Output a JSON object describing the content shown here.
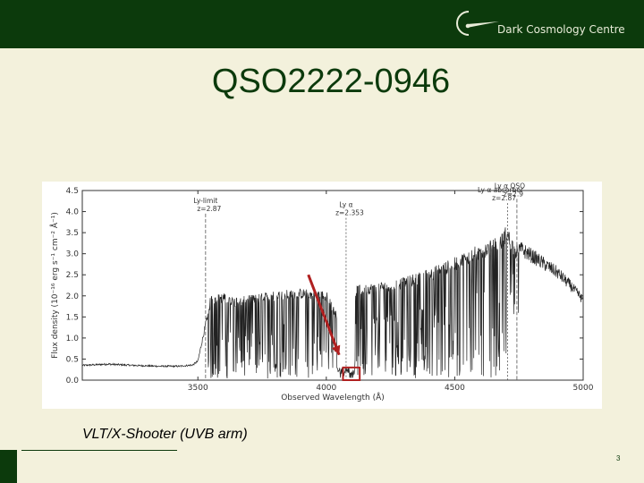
{
  "header": {
    "logo_text": "Dark Cosmology Centre",
    "colors": {
      "bar": "#0c3a0c",
      "background": "#f3f1dc",
      "title": "#0c3a0c"
    }
  },
  "slide": {
    "title": "QSO2222-0946",
    "caption": "VLT/X-Shooter (UVB arm)",
    "page_number": "3"
  },
  "chart_data": {
    "type": "line",
    "title": "",
    "xlabel": "Observed Wavelength (Å)",
    "ylabel": "Flux density (10⁻¹⁶ erg s⁻¹ cm⁻² Å⁻¹)",
    "xlim": [
      3050,
      5000
    ],
    "ylim": [
      0.0,
      4.5
    ],
    "xticks": [
      3500,
      4000,
      4500,
      5000
    ],
    "yticks": [
      0.0,
      0.5,
      1.0,
      1.5,
      2.0,
      2.5,
      3.0,
      3.5,
      4.0,
      4.5
    ],
    "grid": false,
    "series_color": "#222222",
    "continuum": {
      "x": [
        3050,
        3150,
        3250,
        3350,
        3430,
        3480,
        3500,
        3550,
        3600,
        3650,
        3700,
        3800,
        3900,
        4000,
        4050,
        4100,
        4200,
        4300,
        4400,
        4500,
        4560,
        4620,
        4680,
        4700,
        4720,
        4735,
        4760,
        4800,
        4850,
        4900,
        4950,
        5000
      ],
      "y": [
        0.35,
        0.38,
        0.35,
        0.33,
        0.33,
        0.36,
        0.45,
        1.9,
        1.95,
        1.85,
        1.9,
        2.0,
        2.05,
        2.0,
        1.4,
        2.1,
        2.2,
        2.3,
        2.5,
        2.75,
        2.95,
        3.1,
        3.25,
        3.5,
        3.25,
        3.05,
        3.1,
        2.95,
        2.75,
        2.55,
        2.25,
        1.9
      ]
    },
    "markers": [
      {
        "label": "Ly-limit",
        "sub": "z=2.87",
        "x": 3530,
        "y_top": 3.95,
        "style": "dashed"
      },
      {
        "label": "Ly α",
        "sub": "z=2.353",
        "x": 4077,
        "y_top": 3.85,
        "style": "dotted"
      },
      {
        "label": "Ly α absorber",
        "sub": "z=2.87",
        "x": 4706,
        "y_top": 4.2,
        "style": "dotted"
      },
      {
        "label": "Ly α QSO",
        "sub": "z=2.9",
        "x": 4742,
        "y_top": 4.3,
        "style": "dashed"
      }
    ],
    "annotation": {
      "box": {
        "x": [
          4065,
          4130
        ],
        "y": [
          0.0,
          0.3
        ]
      },
      "arrow": {
        "from": [
          3930,
          2.5
        ],
        "to": [
          4050,
          0.6
        ]
      },
      "color": "#b02020"
    }
  }
}
